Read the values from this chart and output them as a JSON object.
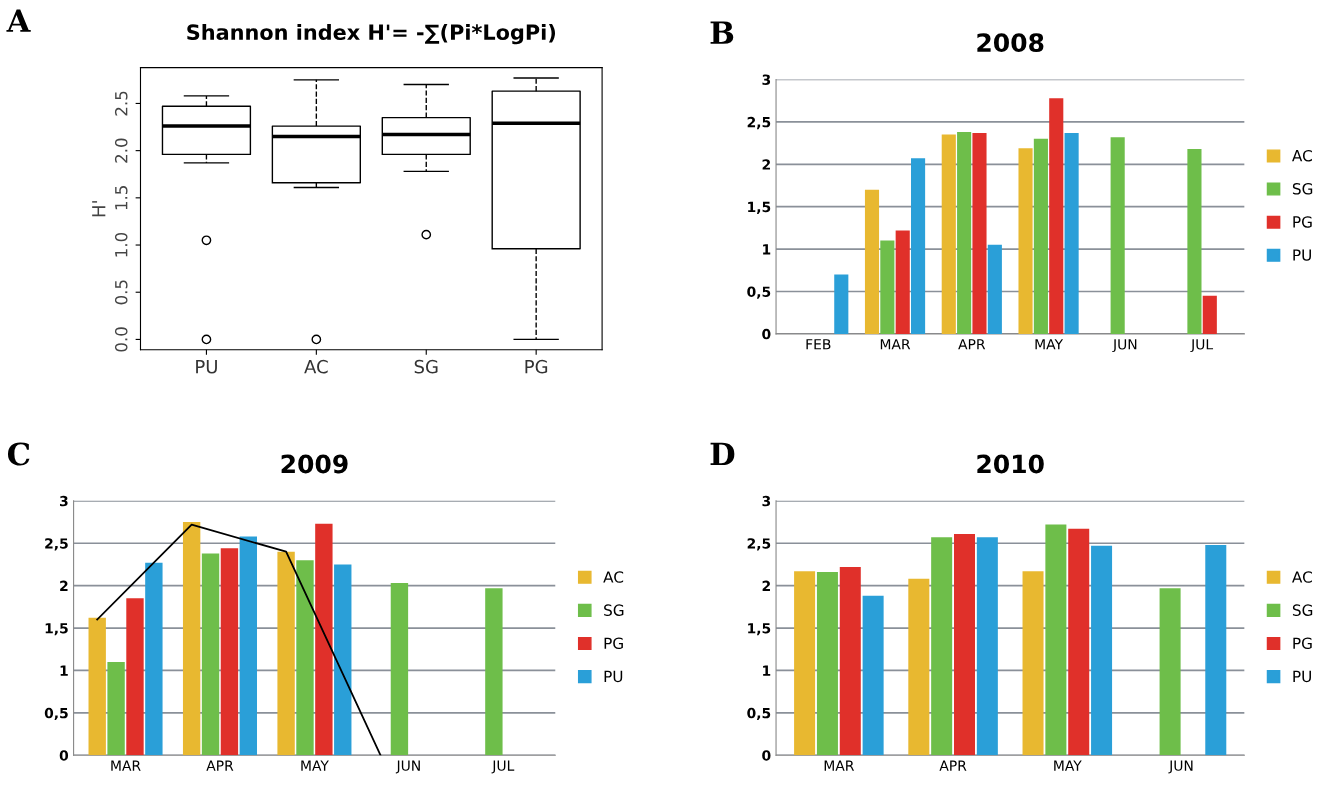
{
  "chart_data": [
    {
      "type": "box",
      "title": "Shannon index H'= -∑(Pi*LogPi)",
      "ylabel": "H'",
      "annotations": [
        "A"
      ],
      "categories": [
        "PU",
        "AC",
        "SG",
        "PG"
      ],
      "boxes": [
        {
          "low": 1.87,
          "q1": 1.96,
          "median": 2.26,
          "q3": 2.47,
          "high": 2.58,
          "outliers": [
            1.05,
            0
          ]
        },
        {
          "low": 1.61,
          "q1": 1.66,
          "median": 2.15,
          "q3": 2.26,
          "high": 2.75,
          "outliers": [
            0
          ]
        },
        {
          "low": 1.78,
          "q1": 1.96,
          "median": 2.17,
          "q3": 2.35,
          "high": 2.7,
          "outliers": [
            1.11
          ]
        },
        {
          "low": 0,
          "q1": 0.96,
          "median": 2.29,
          "q3": 2.63,
          "high": 2.77
        }
      ],
      "ylim": [
        -0.11,
        2.88
      ],
      "yticks": [
        {
          "value": 0,
          "label": "0.0"
        },
        {
          "value": 0.5,
          "label": "0.5"
        },
        {
          "value": 1,
          "label": "1.0"
        },
        {
          "value": 1.5,
          "label": "1.5"
        },
        {
          "value": 2,
          "label": "2.0"
        },
        {
          "value": 2.5,
          "label": "2.5"
        }
      ],
      "grid": false
    },
    {
      "type": "bar",
      "title": "2008",
      "annotations": [
        "B"
      ],
      "categories": [
        "FEB",
        "MAR",
        "APR",
        "MAY",
        "JUN",
        "JUL"
      ],
      "series": [
        {
          "name": "AC",
          "color": "#e8b830",
          "values": [
            0,
            1.7,
            2.35,
            2.19,
            0,
            null
          ]
        },
        {
          "name": "SG",
          "color": "#6ebe4a",
          "values": [
            0,
            1.1,
            2.38,
            2.3,
            2.32,
            2.18
          ]
        },
        {
          "name": "PG",
          "color": "#e0302a",
          "values": [
            0,
            1.22,
            2.37,
            2.78,
            0,
            0.45
          ]
        },
        {
          "name": "PU",
          "color": "#2a9fd8",
          "values": [
            0.7,
            2.07,
            1.05,
            2.37,
            0,
            null
          ]
        }
      ],
      "ylim": [
        0,
        3
      ],
      "yticks": [
        0,
        {
          "value": 0.5,
          "label": "0,5"
        },
        1,
        {
          "value": 1.5,
          "label": "1,5"
        },
        2,
        {
          "value": 2.5,
          "label": "2,5"
        },
        3
      ],
      "grid": "y",
      "legend": "right"
    },
    {
      "type": "bar",
      "title": "2009",
      "annotations": [
        "C"
      ],
      "categories": [
        "MAR",
        "APR",
        "MAY",
        "JUN",
        "JUL"
      ],
      "series": [
        {
          "name": "AC",
          "color": "#e8b830",
          "values": [
            1.62,
            2.75,
            2.4,
            0,
            0
          ]
        },
        {
          "name": "SG",
          "color": "#6ebe4a",
          "values": [
            1.1,
            2.38,
            2.3,
            2.03,
            1.97
          ]
        },
        {
          "name": "PG",
          "color": "#e0302a",
          "values": [
            1.85,
            2.44,
            2.73,
            0,
            0
          ]
        },
        {
          "name": "PU",
          "color": "#2a9fd8",
          "values": [
            2.27,
            2.58,
            2.25,
            0,
            0
          ]
        },
        {
          "type": "line",
          "color": "#000000",
          "values": [
            1.6,
            2.72,
            2.4,
            0,
            null
          ]
        }
      ],
      "ylim": [
        0,
        3
      ],
      "yticks": [
        0,
        {
          "value": 0.5,
          "label": "0,5"
        },
        1,
        {
          "value": 1.5,
          "label": "1,5"
        },
        2,
        {
          "value": 2.5,
          "label": "2,5"
        },
        3
      ],
      "grid": "y",
      "legend": "right"
    },
    {
      "type": "bar",
      "title": "2010",
      "annotations": [
        "D"
      ],
      "categories": [
        "MAR",
        "APR",
        "MAY",
        "JUN"
      ],
      "series": [
        {
          "name": "AC",
          "color": "#e8b830",
          "values": [
            2.17,
            2.08,
            2.17,
            0
          ]
        },
        {
          "name": "SG",
          "color": "#6ebe4a",
          "values": [
            2.16,
            2.57,
            2.72,
            1.97
          ]
        },
        {
          "name": "PG",
          "color": "#e0302a",
          "values": [
            2.22,
            2.61,
            2.67,
            0
          ]
        },
        {
          "name": "PU",
          "color": "#2a9fd8",
          "values": [
            1.88,
            2.57,
            2.47,
            2.48
          ]
        }
      ],
      "ylim": [
        0,
        3
      ],
      "yticks": [
        0,
        {
          "value": 0.5,
          "label": "0,5"
        },
        1,
        {
          "value": 1.5,
          "label": "1,5"
        },
        2,
        {
          "value": 2.5,
          "label": "2,5"
        },
        3
      ],
      "grid": "y",
      "legend": "right"
    }
  ]
}
